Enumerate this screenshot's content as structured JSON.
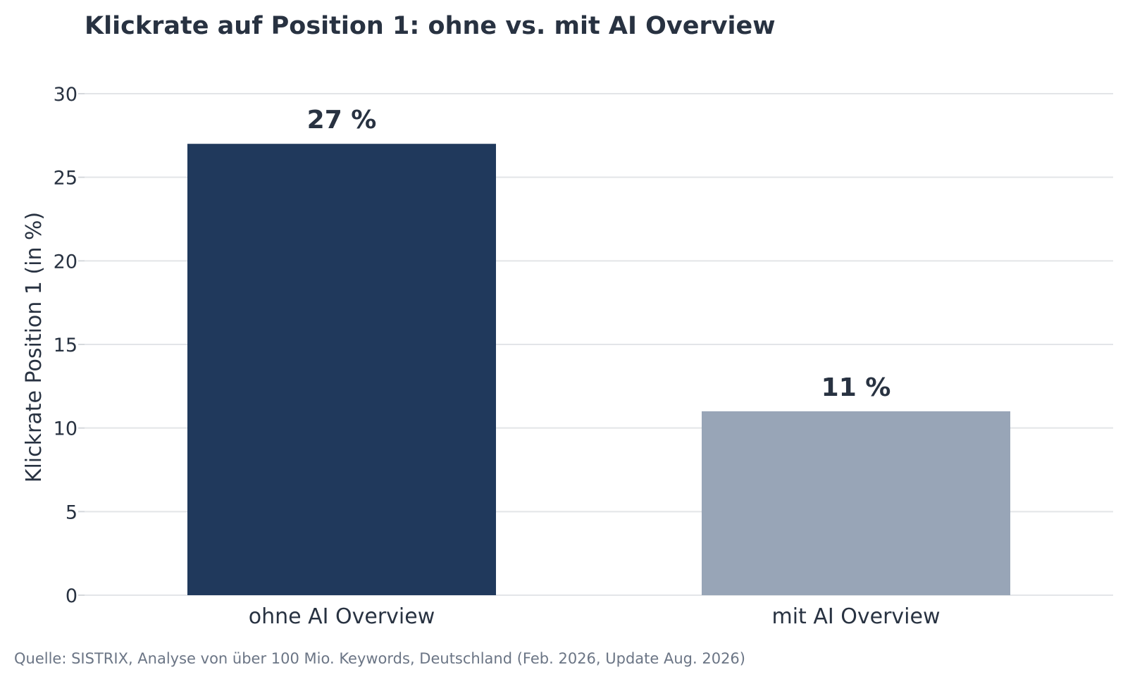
{
  "chart_data": {
    "type": "bar",
    "title": "Klickrate auf Position 1: ohne vs. mit AI Overview",
    "ylabel": "Klickrate Position 1 (in %)",
    "xlabel": "",
    "categories": [
      "ohne AI Overview",
      "mit AI Overview"
    ],
    "values": [
      27,
      11
    ],
    "data_labels": [
      "27 %",
      "11 %"
    ],
    "bar_colors": [
      "#20395c",
      "#98a5b7"
    ],
    "ylim": [
      0,
      30
    ],
    "yticks": [
      0,
      5,
      10,
      15,
      20,
      25,
      30
    ],
    "grid": true,
    "legend": "none",
    "source": "Quelle: SISTRIX, Analyse von über 100 Mio. Keywords, Deutschland (Feb. 2026, Update Aug. 2026)"
  }
}
